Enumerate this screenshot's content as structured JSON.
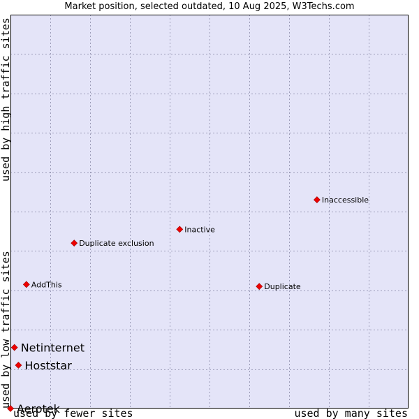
{
  "chart_data": {
    "type": "scatter",
    "title": "Market position, selected outdated, 10 Aug 2025, W3Techs.com",
    "xlabel_left": "used by fewer sites",
    "xlabel_right": "used by many sites",
    "ylabel_bottom": "used by low traffic sites",
    "ylabel_top": "used by high traffic sites",
    "xlim": [
      0,
      100
    ],
    "ylim": [
      0,
      100
    ],
    "grid": true,
    "points": [
      {
        "name": "Inaccessible",
        "x": 77,
        "y": 53,
        "emphasis": false
      },
      {
        "name": "Inactive",
        "x": 42.5,
        "y": 45.5,
        "emphasis": false
      },
      {
        "name": "Duplicate exclusion",
        "x": 16,
        "y": 42,
        "emphasis": false
      },
      {
        "name": "AddThis",
        "x": 4,
        "y": 31.5,
        "emphasis": false
      },
      {
        "name": "Duplicate",
        "x": 62.5,
        "y": 31,
        "emphasis": false
      },
      {
        "name": "Netinternet",
        "x": 1,
        "y": 15.5,
        "emphasis": true
      },
      {
        "name": "Hoststar",
        "x": 2,
        "y": 11,
        "emphasis": true
      },
      {
        "name": "Aerotek",
        "x": 0,
        "y": 0,
        "emphasis": true
      }
    ]
  },
  "colors": {
    "plot_bg": "#e4e4f8",
    "grid": "#9c9cb8",
    "marker": "#ee0000"
  }
}
